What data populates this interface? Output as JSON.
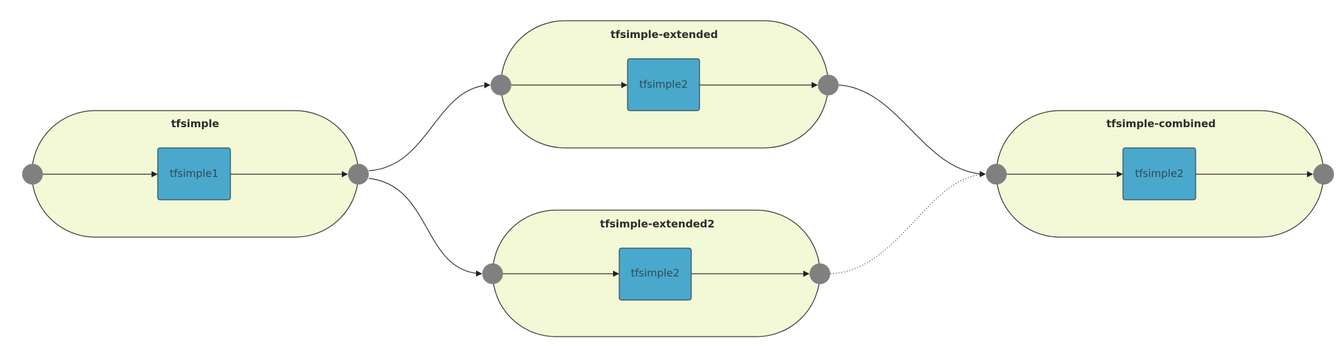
{
  "colors": {
    "pipeline_fill": "#f3f8d6",
    "step_fill": "#4aa8cc",
    "port_fill": "#808080",
    "edge_stroke": "#333333"
  },
  "pipelines": [
    {
      "name": "tfsimple",
      "step": "tfsimple1"
    },
    {
      "name": "tfsimple-extended",
      "step": "tfsimple2"
    },
    {
      "name": "tfsimple-extended2",
      "step": "tfsimple2"
    },
    {
      "name": "tfsimple-combined",
      "step": "tfsimple2"
    }
  ],
  "connections": [
    {
      "from": "tfsimple",
      "to": "tfsimple-extended",
      "style": "solid"
    },
    {
      "from": "tfsimple",
      "to": "tfsimple-extended2",
      "style": "solid"
    },
    {
      "from": "tfsimple-extended",
      "to": "tfsimple-combined",
      "style": "solid"
    },
    {
      "from": "tfsimple-extended2",
      "to": "tfsimple-combined",
      "style": "dotted"
    }
  ]
}
